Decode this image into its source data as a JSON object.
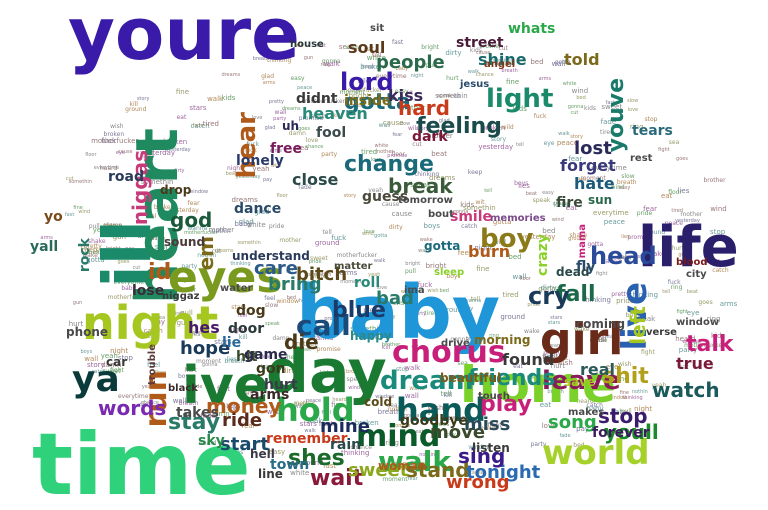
{
  "word_cloud": {
    "background": "#ffffff",
    "words": [
      {
        "text": "youre",
        "color": "#3a1aa8"
      },
      {
        "text": "time",
        "color": "#2fd17a"
      },
      {
        "text": "baby",
        "color": "#1f96d8"
      },
      {
        "text": "day",
        "color": "#1a7a32"
      },
      {
        "text": "ive",
        "color": "#1a7a32"
      },
      {
        "text": "ill",
        "color": "#1b8a6a"
      },
      {
        "text": "heart",
        "color": "#1f8a60"
      },
      {
        "text": "life",
        "color": "#2a1f6a"
      },
      {
        "text": "night",
        "color": "#a6c720"
      },
      {
        "text": "eyes",
        "color": "#7a9a1f"
      },
      {
        "text": "home",
        "color": "#7ad12a"
      },
      {
        "text": "girl",
        "color": "#6a2a1a"
      },
      {
        "text": "world",
        "color": "#a6d12a"
      },
      {
        "text": "live",
        "color": "#2a60b0"
      },
      {
        "text": "hold",
        "color": "#2aa84a"
      },
      {
        "text": "hand",
        "color": "#0a5a5a"
      },
      {
        "text": "mind",
        "color": "#0a5a2a"
      },
      {
        "text": "chorus",
        "color": "#c8207a"
      },
      {
        "text": "dream",
        "color": "#1a8a7a"
      },
      {
        "text": "call",
        "color": "#1a4a7a"
      },
      {
        "text": "ya",
        "color": "#0a3a3a"
      },
      {
        "text": "run",
        "color": "#b05a1a"
      },
      {
        "text": "walk",
        "color": "#2aa84a"
      },
      {
        "text": "leave",
        "color": "#8a1a5a"
      },
      {
        "text": "light",
        "color": "#1a8a6a"
      },
      {
        "text": "blue",
        "color": "#1a3a6a"
      },
      {
        "text": "boy",
        "color": "#8a7a1a"
      },
      {
        "text": "lord",
        "color": "#3a1aa8"
      },
      {
        "text": "feeling",
        "color": "#1a4a4a"
      },
      {
        "text": "gotta",
        "color": "#1a6a7a"
      },
      {
        "text": "youve",
        "color": "#1a7a6a"
      },
      {
        "text": "hear",
        "color": "#b05a1a"
      },
      {
        "text": "head",
        "color": "#2a4a9a"
      },
      {
        "text": "fall",
        "color": "#1a6a4a"
      },
      {
        "text": "cry",
        "color": "#1a3a5a"
      },
      {
        "text": "friends",
        "color": "#1a8a7a"
      },
      {
        "text": "play",
        "color": "#c8207a"
      },
      {
        "text": "stop",
        "color": "#3a1a6a"
      },
      {
        "text": "shit",
        "color": "#b0a01a"
      },
      {
        "text": "talk",
        "color": "#c8207a"
      },
      {
        "text": "left",
        "color": "#a6c720"
      },
      {
        "text": "youll",
        "color": "#1a8a2a"
      },
      {
        "text": "watch",
        "color": "#1a5a5a"
      },
      {
        "text": "wait",
        "color": "#8a1a3a"
      },
      {
        "text": "shes",
        "color": "#1a6a2a"
      },
      {
        "text": "stand",
        "color": "#7a6a1a"
      },
      {
        "text": "tonight",
        "color": "#2a6ab0"
      },
      {
        "text": "sing",
        "color": "#3a1a8a"
      },
      {
        "text": "money",
        "color": "#b05a1a"
      },
      {
        "text": "stay",
        "color": "#2a7a6a"
      },
      {
        "text": "words",
        "color": "#7a2ab0"
      },
      {
        "text": "die",
        "color": "#4a3a1a"
      },
      {
        "text": "change",
        "color": "#1a6a7a"
      },
      {
        "text": "break",
        "color": "#3a5a3a"
      },
      {
        "text": "hard",
        "color": "#c83a1a"
      },
      {
        "text": "niggas",
        "color": "#c83a7a"
      },
      {
        "text": "god",
        "color": "#1a5a3a"
      },
      {
        "text": "em",
        "color": "#7a6a1a"
      },
      {
        "text": "id",
        "color": "#b05a1a"
      },
      {
        "text": "bring",
        "color": "#2a7a6a"
      },
      {
        "text": "care",
        "color": "#2a5a8a"
      },
      {
        "text": "bitch",
        "color": "#5a4a1a"
      },
      {
        "text": "hope",
        "color": "#1a3a5a"
      },
      {
        "text": "mine",
        "color": "#1a2a5a"
      },
      {
        "text": "move",
        "color": "#3a4a2a"
      },
      {
        "text": "miss",
        "color": "#2a4a5a"
      },
      {
        "text": "song",
        "color": "#2aa84a"
      },
      {
        "text": "start",
        "color": "#1a4a6a"
      },
      {
        "text": "ride",
        "color": "#5a2a1a"
      },
      {
        "text": "wrong",
        "color": "#c83a1a"
      },
      {
        "text": "sweet",
        "color": "#8aa81a"
      },
      {
        "text": "bad",
        "color": "#2a7a6a"
      },
      {
        "text": "real",
        "color": "#2a5a5a"
      },
      {
        "text": "found",
        "color": "#3a3a3a"
      },
      {
        "text": "true",
        "color": "#7a1a3a"
      },
      {
        "text": "lost",
        "color": "#2a2a5a"
      },
      {
        "text": "forget",
        "color": "#3a3a7a"
      },
      {
        "text": "hate",
        "color": "#1a5a7a"
      },
      {
        "text": "burn",
        "color": "#b05a1a"
      },
      {
        "text": "people",
        "color": "#2a6a4a"
      },
      {
        "text": "street",
        "color": "#4a1a3a"
      },
      {
        "text": "shine",
        "color": "#1a6a6a"
      },
      {
        "text": "soul",
        "color": "#5a3a1a"
      },
      {
        "text": "inside",
        "color": "#7a6a1a"
      },
      {
        "text": "kiss",
        "color": "#3a2a5a"
      },
      {
        "text": "told",
        "color": "#7a6a1a"
      },
      {
        "text": "whats",
        "color": "#2aa84a"
      },
      {
        "text": "tears",
        "color": "#2a6a7a"
      },
      {
        "text": "dance",
        "color": "#2a4a6a"
      },
      {
        "text": "lonely",
        "color": "#2a3a6a"
      },
      {
        "text": "heaven",
        "color": "#2a8a7a"
      },
      {
        "text": "fool",
        "color": "#3a4a4a"
      },
      {
        "text": "free",
        "color": "#7a1a5a"
      },
      {
        "text": "close",
        "color": "#2a4a4a"
      },
      {
        "text": "hit",
        "color": "#3a4a2a"
      },
      {
        "text": "gon",
        "color": "#3a3a1a"
      },
      {
        "text": "hurt",
        "color": "#3a3a4a"
      },
      {
        "text": "door",
        "color": "#2a3a3a"
      },
      {
        "text": "dog",
        "color": "#4a3a1a"
      },
      {
        "text": "hes",
        "color": "#4a1a6a"
      },
      {
        "text": "sky",
        "color": "#2a8a4a"
      },
      {
        "text": "takes",
        "color": "#4a4a4a"
      },
      {
        "text": "remember",
        "color": "#c83a1a"
      },
      {
        "text": "town",
        "color": "#2a6a8a"
      },
      {
        "text": "rain",
        "color": "#2a4a4a"
      },
      {
        "text": "goodbye",
        "color": "#3a3a1a"
      },
      {
        "text": "road",
        "color": "#2a3a5a"
      },
      {
        "text": "rock",
        "color": "#2a7a6a"
      },
      {
        "text": "yall",
        "color": "#2a6a5a"
      },
      {
        "text": "yo",
        "color": "#7a4a1a"
      },
      {
        "text": "lose",
        "color": "#3a2a3a"
      },
      {
        "text": "fly",
        "color": "#2a4a6a"
      },
      {
        "text": "fire",
        "color": "#3a4a3a"
      },
      {
        "text": "crazy",
        "color": "#8ad12a"
      },
      {
        "text": "roll",
        "color": "#2a8a7a"
      },
      {
        "text": "arms",
        "color": "#3a2a2a"
      },
      {
        "text": "lie",
        "color": "#2a6a9a"
      },
      {
        "text": "game",
        "color": "#2a2a4a"
      },
      {
        "text": "forever",
        "color": "#3a1a5a"
      },
      {
        "text": "uh",
        "color": "#2a2a5a"
      },
      {
        "text": "guess",
        "color": "#4a4a3a"
      },
      {
        "text": "dark",
        "color": "#7a1a3a"
      },
      {
        "text": "didnt",
        "color": "#3a3a3a"
      },
      {
        "text": "line",
        "color": "#3a3a3a"
      },
      {
        "text": "woman",
        "color": "#b05a1a"
      },
      {
        "text": "smile",
        "color": "#c83a7a"
      },
      {
        "text": "bout",
        "color": "#4a4a4a"
      },
      {
        "text": "beautiful",
        "color": "#7a5a1a"
      },
      {
        "text": "morning",
        "color": "#7a6a1a"
      },
      {
        "text": "save",
        "color": "#a6c720"
      },
      {
        "text": "coming",
        "color": "#4a4a4a"
      },
      {
        "text": "dead",
        "color": "#2a4a4a"
      },
      {
        "text": "makes",
        "color": "#4a4a4a"
      },
      {
        "text": "listen",
        "color": "#3a3a3a"
      },
      {
        "text": "drop",
        "color": "#4a3a1a"
      },
      {
        "text": "understand",
        "color": "#2a3a5a"
      },
      {
        "text": "sound",
        "color": "#4a3a3a"
      },
      {
        "text": "happy",
        "color": "#2a8a8a"
      },
      {
        "text": "cold",
        "color": "#5a4a1a"
      },
      {
        "text": "hell",
        "color": "#3a3a4a"
      },
      {
        "text": "gotta",
        "color": "#1a6a7a"
      },
      {
        "text": "mama",
        "color": "#c8207a"
      },
      {
        "text": "sun",
        "color": "#2a6a4a"
      },
      {
        "text": "angel",
        "color": "#7a3a1a"
      },
      {
        "text": "jesus",
        "color": "#2a4a6a"
      },
      {
        "text": "house",
        "color": "#2a3a3a"
      },
      {
        "text": "sit",
        "color": "#4a4a4a"
      },
      {
        "text": "matter",
        "color": "#4a4a3a"
      },
      {
        "text": "tomorrow",
        "color": "#4a4a4a"
      },
      {
        "text": "trouble",
        "color": "#5a3a3a"
      },
      {
        "text": "car",
        "color": "#3a3a3a"
      },
      {
        "text": "black",
        "color": "#3a2a2a"
      },
      {
        "text": "memories",
        "color": "#7a4a8a"
      },
      {
        "text": "sleep",
        "color": "#8ad12a"
      },
      {
        "text": "rest",
        "color": "#4a4a4a"
      },
      {
        "text": "city",
        "color": "#4a4a4a"
      },
      {
        "text": "blood",
        "color": "#7a1a1a"
      },
      {
        "text": "window",
        "color": "#4a4a4a"
      },
      {
        "text": "verse",
        "color": "#3a3a3a"
      },
      {
        "text": "niggaz",
        "color": "#3a3a3a"
      },
      {
        "text": "water",
        "color": "#4a4a4a"
      },
      {
        "text": "phone",
        "color": "#4a4a4a"
      },
      {
        "text": "ima",
        "color": "#4a4a4a"
      },
      {
        "text": "drive",
        "color": "#4a4a4a"
      },
      {
        "text": "touch",
        "color": "#4a4a4a"
      }
    ],
    "filler_words": [
      "love",
      "wanna",
      "gonna",
      "gotta",
      "cause",
      "baby",
      "yeah",
      "feel",
      "tell",
      "night",
      "everytime",
      "nothin",
      "somethin",
      "breath",
      "wind",
      "promise",
      "motherfucker",
      "ground",
      "tired",
      "fuck",
      "wake",
      "wall",
      "floor",
      "window",
      "chance",
      "broken",
      "moment",
      "peace",
      "dreams",
      "party",
      "brother",
      "pretty",
      "speak",
      "story",
      "slow",
      "catch",
      "hurt",
      "walk",
      "bed",
      "yesterday",
      "mother",
      "eat",
      "fight",
      "lies",
      "heard",
      "thinking",
      "fine",
      "kill",
      "goes",
      "fear",
      "kids",
      "dirty",
      "beat",
      "pay",
      "pride",
      "shake",
      "easy",
      "fade",
      "cut",
      "boys",
      "gun",
      "fast",
      "sweet",
      "wild",
      "ring",
      "eye",
      "damn",
      "keep",
      "wish",
      "stars",
      "pull",
      "wit",
      "white",
      "stop",
      "sea",
      "glad",
      "bright",
      "arms"
    ]
  }
}
